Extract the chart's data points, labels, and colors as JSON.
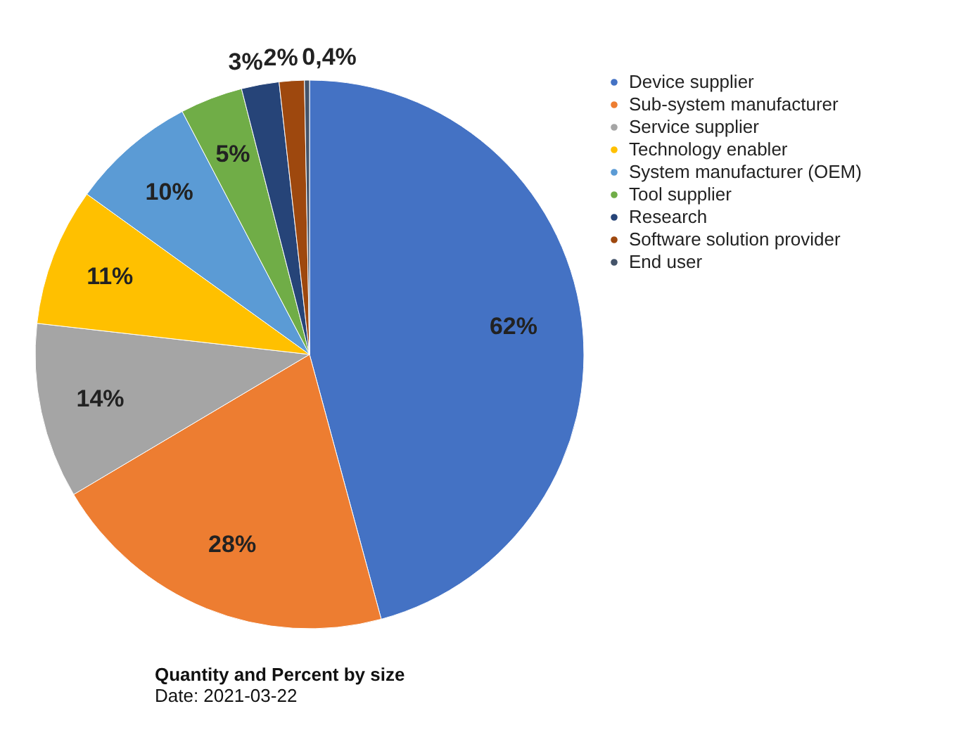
{
  "chart_data": {
    "type": "pie",
    "title": "Quantity and Percent by size",
    "subtitle": "Date: 2021-03-22",
    "categories": [
      "Device supplier",
      "Sub-system manufacturer",
      "Service supplier",
      "Technology enabler",
      "System manufacturer (OEM)",
      "Tool supplier",
      "Research",
      "Software solution provider",
      "End user"
    ],
    "values": [
      62,
      28,
      14,
      11,
      10,
      5,
      3,
      2,
      0.4
    ],
    "value_labels": [
      "62%",
      "28%",
      "14%",
      "11%",
      "10%",
      "5%",
      "3%",
      "2%",
      "0,4%"
    ],
    "colors": [
      "#4472c4",
      "#ed7d31",
      "#a5a5a5",
      "#ffc000",
      "#5b9bd5",
      "#70ad47",
      "#264478",
      "#9e480e",
      "#44546a"
    ],
    "legend": "right"
  }
}
